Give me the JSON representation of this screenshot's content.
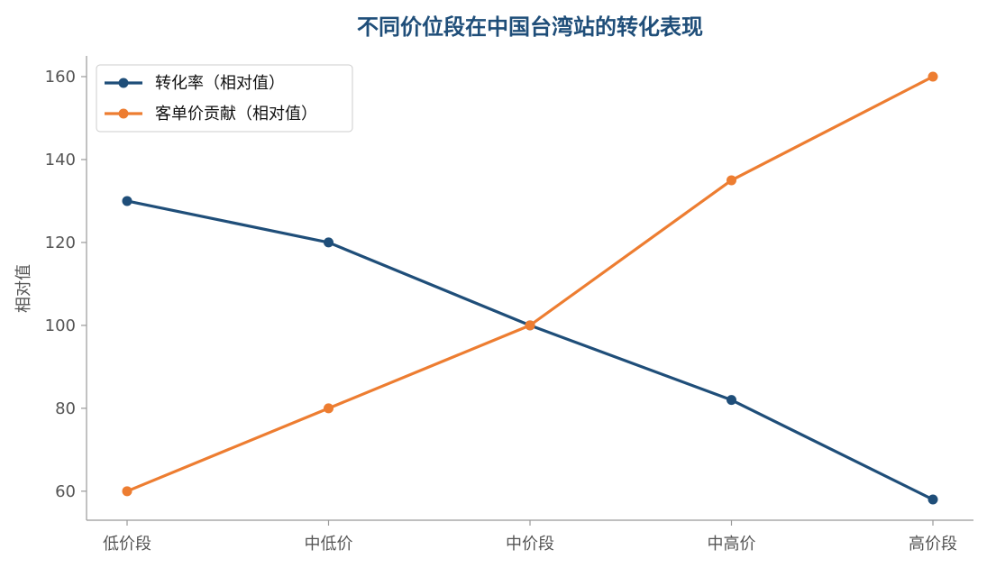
{
  "chart_data": {
    "type": "line",
    "title": "不同价位段在中国台湾站的转化表现",
    "xlabel": "",
    "ylabel": "相对值",
    "categories": [
      "低价段",
      "中低价",
      "中价段",
      "中高价",
      "高价段"
    ],
    "ylim": [
      53,
      165
    ],
    "yticks": [
      60,
      80,
      100,
      120,
      140,
      160
    ],
    "series": [
      {
        "name": "转化率（相对值）",
        "values": [
          130,
          120,
          100,
          82,
          58
        ],
        "color": "#1f4e79"
      },
      {
        "name": "客单价贡献（相对值）",
        "values": [
          60,
          80,
          100,
          135,
          160
        ],
        "color": "#ed7d31"
      }
    ],
    "legend_position": "top-left",
    "grid": false,
    "title_color": "#1f4e79"
  }
}
